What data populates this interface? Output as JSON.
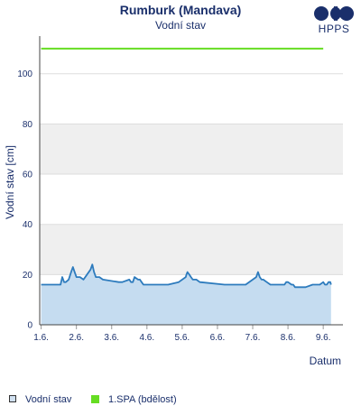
{
  "title": "Rumburk (Mandava)",
  "subtitle": "Vodní stav",
  "logo": {
    "text": "HPPS",
    "icon": "hpps-logo-icon",
    "color": "#1a2f6b"
  },
  "legend": [
    {
      "label": "Vodní stav",
      "color": "#d0e0f0",
      "border": "#333333"
    },
    {
      "label": "1.SPA (bdělost)",
      "color": "#66dd22"
    }
  ],
  "colors": {
    "water_line": "#2d7bbd",
    "water_fill": "#c5dcf0",
    "spa_line": "#66dd22",
    "band": "#efefef",
    "grid": "#dddddd",
    "axis_text": "#1a2f6b"
  },
  "chart_data": {
    "type": "area",
    "title": "Rumburk (Mandava)",
    "subtitle": "Vodní stav",
    "xlabel": "Datum",
    "ylabel": "Vodní stav [cm]",
    "ylim": [
      0,
      115
    ],
    "xlim": [
      0,
      8.6
    ],
    "x_unit": "days since 1.6.",
    "yticks": [
      0,
      20,
      40,
      60,
      80,
      100
    ],
    "xticks": [
      {
        "value": 0,
        "label": "1.6."
      },
      {
        "value": 1,
        "label": "2.6."
      },
      {
        "value": 2,
        "label": "3.6."
      },
      {
        "value": 3,
        "label": "4.6."
      },
      {
        "value": 4,
        "label": "5.6."
      },
      {
        "value": 5,
        "label": "6.6."
      },
      {
        "value": 6,
        "label": "7.6."
      },
      {
        "value": 7,
        "label": "8.6."
      },
      {
        "value": 8,
        "label": "9.6."
      }
    ],
    "grid": true,
    "legend_position": "bottom-left",
    "series": [
      {
        "name": "Vodní stav",
        "type": "area",
        "x": [
          0,
          0.55,
          0.6,
          0.65,
          0.7,
          0.78,
          0.85,
          0.9,
          0.95,
          1.0,
          1.05,
          1.1,
          1.2,
          1.4,
          1.45,
          1.5,
          1.55,
          1.6,
          1.65,
          1.75,
          2.2,
          2.3,
          2.5,
          2.55,
          2.6,
          2.65,
          2.75,
          2.8,
          2.85,
          2.9,
          3.2,
          3.4,
          3.6,
          3.9,
          4.1,
          4.12,
          4.15,
          4.2,
          4.25,
          4.3,
          4.4,
          4.5,
          5.2,
          5.5,
          5.8,
          6.1,
          6.15,
          6.2,
          6.25,
          6.3,
          6.4,
          6.5,
          6.8,
          6.9,
          6.95,
          7.0,
          7.1,
          7.15,
          7.2,
          7.3,
          7.5,
          7.7,
          7.9,
          8.0,
          8.05,
          8.1,
          8.15,
          8.2,
          8.22
        ],
        "values": [
          16,
          16,
          19,
          17,
          17,
          18,
          21,
          23,
          21,
          19,
          19,
          19,
          18,
          22,
          24,
          21,
          19,
          19,
          19,
          18,
          17,
          17,
          18,
          17,
          17,
          19,
          18,
          18,
          17,
          16,
          16,
          16,
          16,
          17,
          19,
          20,
          21,
          20,
          19,
          18,
          18,
          17,
          16,
          16,
          16,
          19,
          21,
          19,
          18,
          18,
          17,
          16,
          16,
          16,
          17,
          17,
          16,
          16,
          15,
          15,
          15,
          16,
          16,
          17,
          16,
          16,
          17,
          17,
          16
        ]
      },
      {
        "name": "1.SPA (bdělost)",
        "type": "line",
        "x": [
          0,
          8.0
        ],
        "values": [
          110,
          110
        ]
      }
    ]
  }
}
